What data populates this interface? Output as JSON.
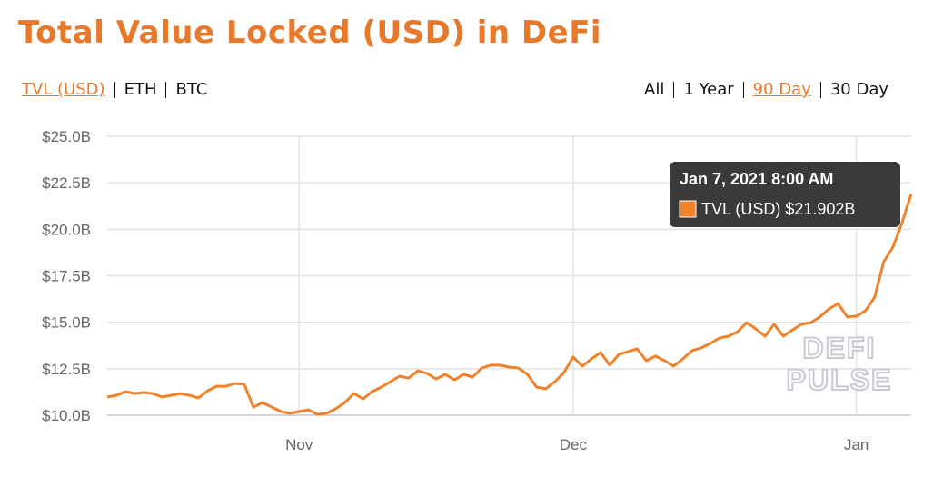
{
  "chart_data": {
    "type": "line",
    "title": "Total Value Locked (USD) in DeFi",
    "tabs_left": [
      {
        "label": "TVL (USD)",
        "active": true
      },
      {
        "label": "ETH",
        "active": false
      },
      {
        "label": "BTC",
        "active": false
      }
    ],
    "tabs_right": [
      {
        "label": "All",
        "active": false
      },
      {
        "label": "1 Year",
        "active": false
      },
      {
        "label": "90 Day",
        "active": true
      },
      {
        "label": "30 Day",
        "active": false
      }
    ],
    "series": [
      {
        "name": "TVL (USD)",
        "color": "#f0822c",
        "values": [
          10.98,
          11.07,
          11.27,
          11.17,
          11.22,
          11.17,
          10.98,
          11.07,
          11.17,
          11.07,
          10.93,
          11.32,
          11.56,
          11.56,
          11.71,
          11.66,
          10.44,
          10.68,
          10.44,
          10.2,
          10.1,
          10.2,
          10.29,
          10.05,
          10.1,
          10.34,
          10.68,
          11.17,
          10.88,
          11.27,
          11.51,
          11.81,
          12.1,
          12.0,
          12.39,
          12.25,
          11.95,
          12.2,
          11.9,
          12.2,
          12.05,
          12.54,
          12.69,
          12.69,
          12.59,
          12.54,
          12.2,
          11.51,
          11.42,
          11.81,
          12.3,
          13.13,
          12.64,
          13.03,
          13.37,
          12.69,
          13.27,
          13.42,
          13.57,
          12.93,
          13.18,
          12.93,
          12.64,
          13.03,
          13.47,
          13.62,
          13.86,
          14.15,
          14.25,
          14.49,
          14.98,
          14.64,
          14.25,
          14.89,
          14.25,
          14.59,
          14.89,
          14.98,
          15.28,
          15.72,
          16.0,
          15.28,
          15.33,
          15.62,
          16.35,
          18.26,
          19.04,
          20.36,
          21.902
        ]
      }
    ],
    "xlim": [
      0,
      88
    ],
    "xticks": [
      {
        "value": 21,
        "label": "Nov"
      },
      {
        "value": 51,
        "label": "Dec"
      },
      {
        "value": 82,
        "label": "Jan"
      }
    ],
    "ylim": [
      10,
      25
    ],
    "yticks": [
      {
        "value": 10,
        "label": "$10.0B"
      },
      {
        "value": 12.5,
        "label": "$12.5B"
      },
      {
        "value": 15,
        "label": "$15.0B"
      },
      {
        "value": 17.5,
        "label": "$17.5B"
      },
      {
        "value": 20,
        "label": "$20.0B"
      },
      {
        "value": 22.5,
        "label": "$22.5B"
      },
      {
        "value": 25,
        "label": "$25.0B"
      }
    ],
    "grid": true,
    "tooltip": {
      "title": "Jan 7, 2021 8:00 AM",
      "value": 21.902,
      "value_label": "$21.902B"
    },
    "watermark": [
      "DEFI",
      "PULSE"
    ]
  }
}
